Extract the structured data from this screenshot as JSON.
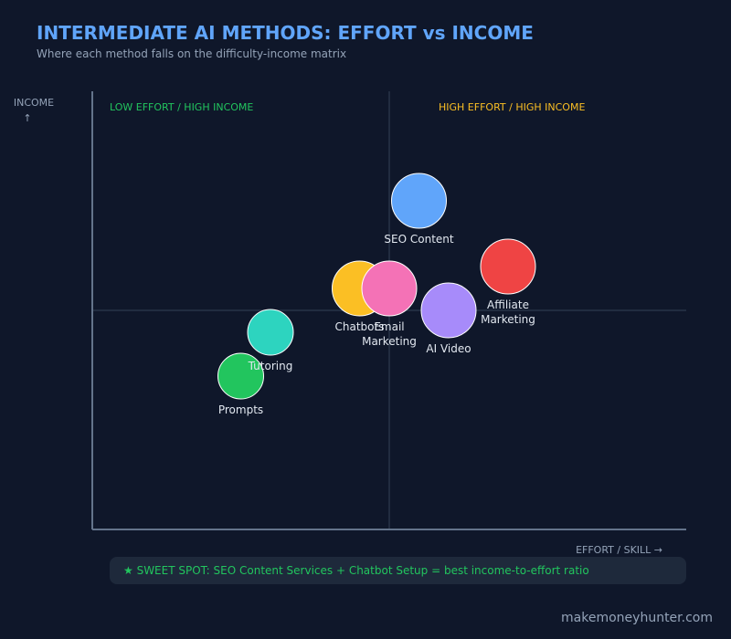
{
  "header": {
    "title": "INTERMEDIATE AI METHODS: EFFORT vs INCOME",
    "subtitle": "Where each method falls on the difficulty-income matrix"
  },
  "chart_data": {
    "type": "scatter",
    "xlabel": "EFFORT / SKILL →",
    "ylabel": "INCOME ↑",
    "grid": false,
    "quadrant_dividers": true,
    "quadrants": [
      {
        "label": "LOW EFFORT / HIGH INCOME",
        "color": "#22c55e"
      },
      {
        "label": "HIGH EFFORT / HIGH INCOME",
        "color": "#fbbf24"
      }
    ],
    "points": [
      {
        "name": "SEO Content",
        "label_lines": [
          "SEO Content"
        ],
        "x": 0.55,
        "y": 0.75,
        "color": "#60a5fa"
      },
      {
        "name": "Affiliate Marketing",
        "label_lines": [
          "Affiliate",
          "Marketing"
        ],
        "x": 0.7,
        "y": 0.6,
        "color": "#ef4444"
      },
      {
        "name": "Chatbots",
        "label_lines": [
          "Chatbots"
        ],
        "x": 0.45,
        "y": 0.55,
        "color": "#fbbf24"
      },
      {
        "name": "Email Marketing",
        "label_lines": [
          "Email",
          "Marketing"
        ],
        "x": 0.5,
        "y": 0.55,
        "color": "#f472b6"
      },
      {
        "name": "AI Video",
        "label_lines": [
          "AI Video"
        ],
        "x": 0.6,
        "y": 0.5,
        "color": "#a78bfa"
      },
      {
        "name": "Tutoring",
        "label_lines": [
          "Tutoring"
        ],
        "x": 0.3,
        "y": 0.45,
        "color": "#2dd4bf"
      },
      {
        "name": "Prompts",
        "label_lines": [
          "Prompts"
        ],
        "x": 0.25,
        "y": 0.35,
        "color": "#22c55e"
      }
    ]
  },
  "callout": {
    "text": "★ SWEET SPOT: SEO Content Services + Chatbot Setup = best income-to-effort ratio"
  },
  "footer": {
    "watermark": "makemoneyhunter.com"
  },
  "colors": {
    "background": "#0f172a",
    "axis": "#64748b",
    "divider": "#334155",
    "title": "#60a5fa",
    "muted": "#94a3b8"
  }
}
